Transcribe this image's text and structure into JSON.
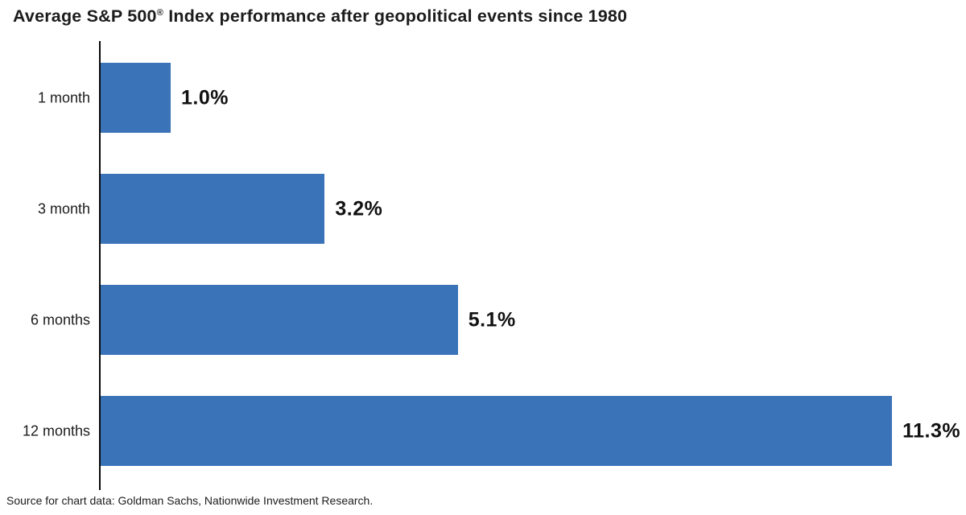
{
  "title": {
    "prefix": "Average S&P 500",
    "registered": "®",
    "suffix": " Index performance after geopolitical events since 1980"
  },
  "source": "Source for chart data: Goldman Sachs, Nationwide Investment Research.",
  "colors": {
    "bar": "#3A73B8",
    "axis": "#0A0A0A",
    "text": "#1C1C1C"
  },
  "chart_data": {
    "type": "bar",
    "orientation": "horizontal",
    "title": "Average S&P 500® Index performance after geopolitical events since 1980",
    "categories": [
      "1 month",
      "3 month",
      "6 months",
      "12 months"
    ],
    "values": [
      1.0,
      3.2,
      5.1,
      11.3
    ],
    "value_labels": [
      "1.0%",
      "3.2%",
      "5.1%",
      "11.3%"
    ],
    "xlabel": "",
    "ylabel": "",
    "xlim": [
      0,
      12.3
    ],
    "grid": false,
    "legend": null,
    "value_label_position": "right-of-bar",
    "source": "Source for chart data: Goldman Sachs, Nationwide Investment Research."
  }
}
